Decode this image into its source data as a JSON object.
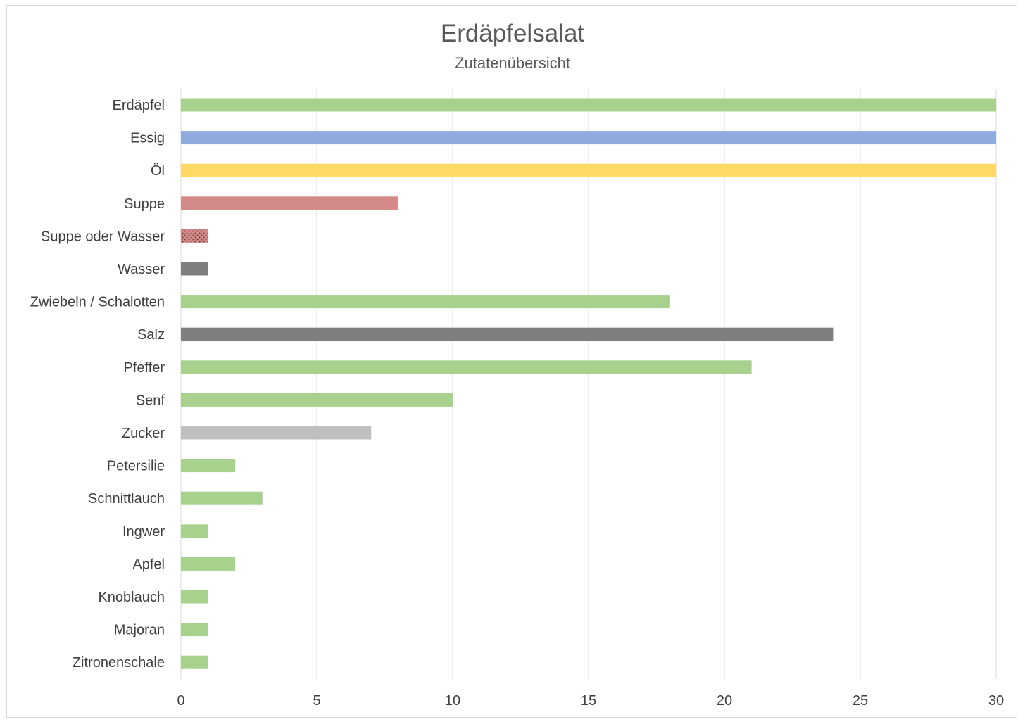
{
  "chart_data": {
    "type": "bar",
    "orientation": "horizontal",
    "title": "Erdäpfelsalat",
    "subtitle": "Zutatenübersicht",
    "xlabel": "",
    "ylabel": "",
    "xlim": [
      0,
      30
    ],
    "x_ticks": [
      0,
      5,
      10,
      15,
      20,
      25,
      30
    ],
    "grid": "vertical",
    "legend": "none",
    "categories": [
      "Erdäpfel",
      "Essig",
      "Öl",
      "Suppe",
      "Suppe oder Wasser",
      "Wasser",
      "Zwiebeln / Schalotten",
      "Salz",
      "Pfeffer",
      "Senf",
      "Zucker",
      "Petersilie",
      "Schnittlauch",
      "Ingwer",
      "Apfel",
      "Knoblauch",
      "Majoran",
      "Zitronenschale"
    ],
    "values": [
      30,
      30,
      30,
      8,
      1,
      1,
      18,
      24,
      21,
      10,
      7,
      2,
      3,
      1,
      2,
      1,
      1,
      1
    ],
    "colors": [
      "#a9d18e",
      "#8faadc",
      "#ffd966",
      "#d48a88",
      "pattern-dotted-red",
      "#7f7f7f",
      "#a9d18e",
      "#7f7f7f",
      "#a9d18e",
      "#a9d18e",
      "#bfbfbf",
      "#a9d18e",
      "#a9d18e",
      "#a9d18e",
      "#a9d18e",
      "#a9d18e",
      "#a9d18e",
      "#a9d18e"
    ]
  }
}
